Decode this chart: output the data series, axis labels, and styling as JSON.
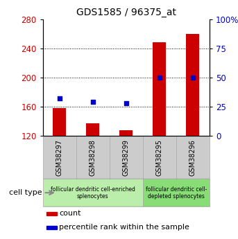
{
  "title": "GDS1585 / 96375_at",
  "samples": [
    "GSM38297",
    "GSM38298",
    "GSM38299",
    "GSM38295",
    "GSM38296"
  ],
  "counts": [
    158,
    137,
    128,
    248,
    260
  ],
  "percentiles": [
    32,
    29,
    28,
    50,
    50
  ],
  "ylim_left": [
    120,
    280
  ],
  "yticks_left": [
    120,
    160,
    200,
    240,
    280
  ],
  "ylim_right": [
    0,
    100
  ],
  "yticks_right": [
    0,
    25,
    50,
    75,
    100
  ],
  "bar_color": "#cc0000",
  "dot_color": "#0000cc",
  "bar_bottom": 120,
  "cell_type_groups": [
    {
      "label": "follicular dendritic cell-enriched\nsplenocytes",
      "start": 0,
      "end": 3,
      "color": "#bbeeaa"
    },
    {
      "label": "follicular dendritic cell-\ndepleted splenocytes",
      "start": 3,
      "end": 5,
      "color": "#88dd77"
    }
  ],
  "legend_items": [
    {
      "color": "#cc0000",
      "label": "count"
    },
    {
      "color": "#0000cc",
      "label": "percentile rank within the sample"
    }
  ],
  "cell_type_label": "cell type",
  "left_axis_color": "#cc0000",
  "right_axis_color": "#0000cc",
  "grid_yticks": [
    160,
    200,
    240
  ],
  "sample_box_color": "#cccccc",
  "sample_box_edge_color": "#aaaaaa"
}
